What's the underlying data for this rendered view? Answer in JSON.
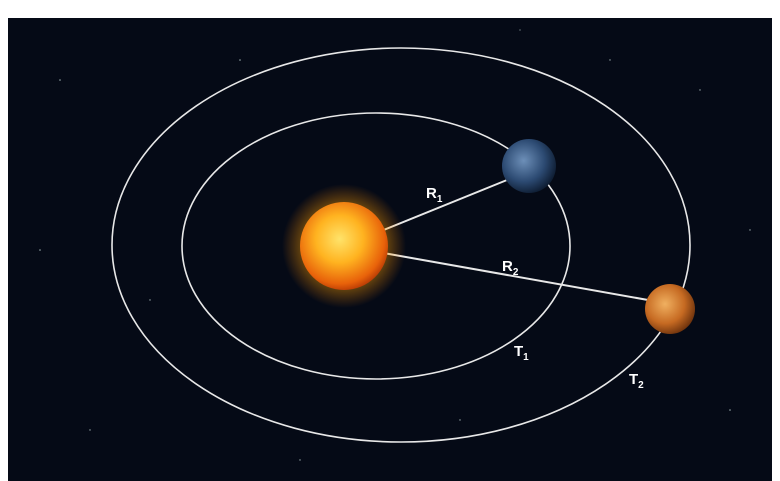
{
  "labels": [
    {
      "letter": "R",
      "subscript": "1"
    },
    {
      "letter": "R",
      "subscript": "2"
    },
    {
      "letter": "T",
      "subscript": "1"
    },
    {
      "letter": "T",
      "subscript": "2"
    }
  ]
}
